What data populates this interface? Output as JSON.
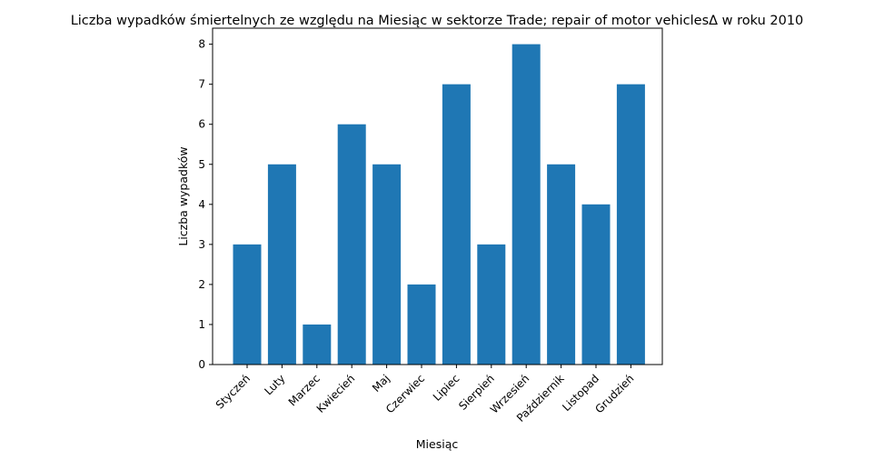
{
  "chart_data": {
    "type": "bar",
    "title": "Liczba wypadków śmiertelnych ze względu na Miesiąc w sektorze  Trade; repair of motor vehiclesΔ  w roku 2010",
    "xlabel": "Miesiąc",
    "ylabel": "Liczba wypadków",
    "categories": [
      "Styczeń",
      "Luty",
      "Marzec",
      "Kwiecień",
      "Maj",
      "Czerwiec",
      "Lipiec",
      "Sierpień",
      "Wrzesień",
      "Październik",
      "Listopad",
      "Grudzień"
    ],
    "values": [
      3,
      5,
      1,
      6,
      5,
      2,
      7,
      3,
      8,
      5,
      4,
      7
    ],
    "ylim": [
      0,
      8.4
    ],
    "yticks": [
      0,
      1,
      2,
      3,
      4,
      5,
      6,
      7,
      8
    ],
    "bar_color": "#1f77b4",
    "grid": false,
    "legend": "none"
  }
}
